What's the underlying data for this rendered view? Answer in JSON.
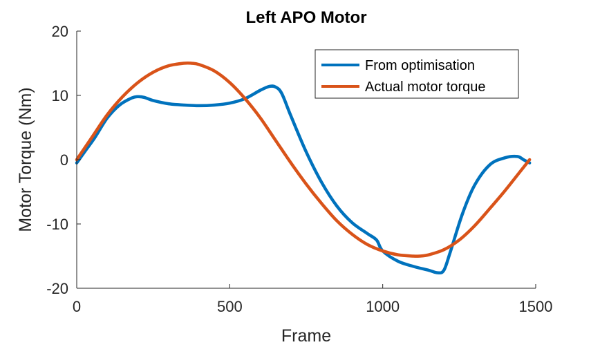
{
  "chart_data": {
    "type": "line",
    "title": "Left APO Motor",
    "xlabel": "Frame",
    "ylabel": "Motor Torque (Nm)",
    "xlim": [
      0,
      1500
    ],
    "ylim": [
      -20,
      20
    ],
    "xticks": [
      0,
      500,
      1000,
      1500
    ],
    "yticks": [
      -20,
      -10,
      0,
      10,
      20
    ],
    "grid": false,
    "legend_position": "top-right",
    "series": [
      {
        "name": "From optimisation",
        "color": "#0072BD",
        "x": [
          0,
          30,
          60,
          100,
          140,
          180,
          200,
          220,
          250,
          300,
          350,
          400,
          450,
          500,
          550,
          600,
          630,
          650,
          670,
          700,
          750,
          800,
          850,
          900,
          950,
          980,
          1000,
          1050,
          1100,
          1150,
          1180,
          1200,
          1220,
          1260,
          1300,
          1350,
          1400,
          1440,
          1460,
          1480
        ],
        "y": [
          -0.5,
          1.5,
          3.5,
          6.5,
          8.5,
          9.6,
          9.8,
          9.7,
          9.2,
          8.7,
          8.5,
          8.4,
          8.5,
          8.8,
          9.5,
          10.8,
          11.4,
          11.3,
          10.3,
          6.8,
          1.2,
          -3.5,
          -7.2,
          -9.8,
          -11.5,
          -12.5,
          -14.2,
          -15.8,
          -16.6,
          -17.2,
          -17.6,
          -17.2,
          -14.5,
          -8.5,
          -4.0,
          -0.8,
          0.3,
          0.5,
          0.0,
          -0.5
        ]
      },
      {
        "name": "Actual motor torque",
        "color": "#D95319",
        "x": [
          0,
          50,
          100,
          150,
          200,
          250,
          300,
          350,
          375,
          400,
          450,
          500,
          550,
          600,
          650,
          700,
          750,
          800,
          850,
          900,
          950,
          1000,
          1050,
          1100,
          1120,
          1150,
          1200,
          1250,
          1300,
          1350,
          1400,
          1450,
          1480
        ],
        "y": [
          0,
          3.5,
          7.0,
          9.8,
          12.0,
          13.6,
          14.6,
          15.0,
          15.0,
          14.8,
          13.8,
          12.0,
          9.5,
          6.5,
          3.0,
          -0.5,
          -3.8,
          -6.8,
          -9.5,
          -11.6,
          -13.2,
          -14.2,
          -14.8,
          -15.0,
          -15.0,
          -14.8,
          -14.0,
          -12.5,
          -10.3,
          -7.6,
          -4.8,
          -1.8,
          0
        ]
      }
    ]
  }
}
